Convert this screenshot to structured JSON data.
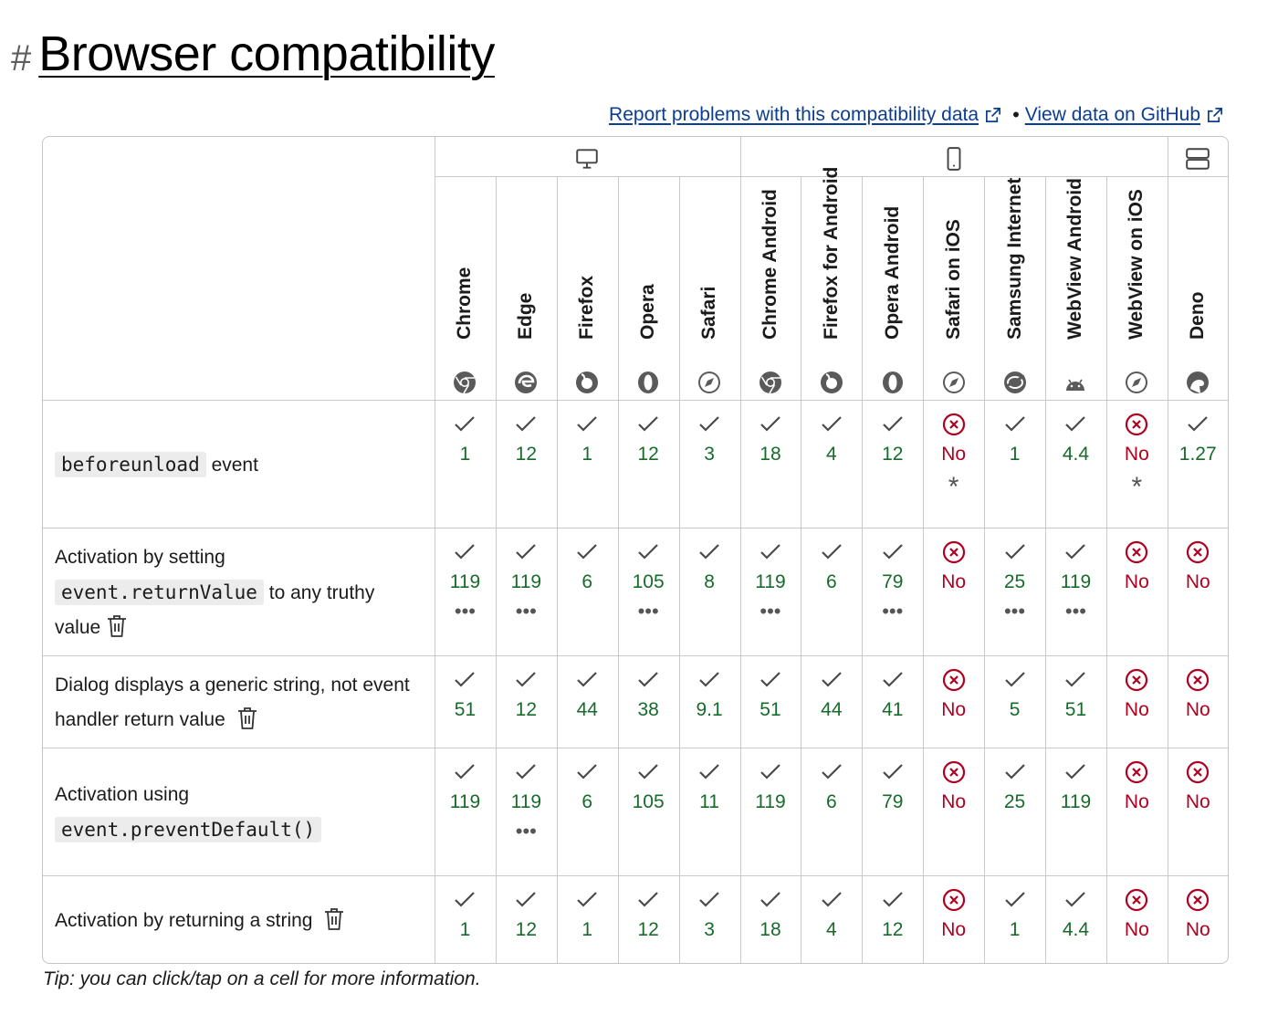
{
  "page": {
    "hash": "#",
    "title": "Browser compatibility",
    "report_link": "Report problems with this compatibility data",
    "separator": "•",
    "github_link": "View data on GitHub",
    "tip": "Tip: you can click/tap on a cell for more information."
  },
  "groups": [
    {
      "name": "desktop",
      "icon": "monitor-icon"
    },
    {
      "name": "mobile",
      "icon": "smartphone-icon"
    },
    {
      "name": "server",
      "icon": "server-icon"
    }
  ],
  "browsers": [
    {
      "name": "Chrome",
      "icon": "chrome-icon"
    },
    {
      "name": "Edge",
      "icon": "edge-icon"
    },
    {
      "name": "Firefox",
      "icon": "firefox-icon"
    },
    {
      "name": "Opera",
      "icon": "opera-icon"
    },
    {
      "name": "Safari",
      "icon": "safari-icon"
    },
    {
      "name": "Chrome Android",
      "icon": "chrome-icon"
    },
    {
      "name": "Firefox for Android",
      "icon": "firefox-icon"
    },
    {
      "name": "Opera Android",
      "icon": "opera-icon"
    },
    {
      "name": "Safari on iOS",
      "icon": "safari-icon"
    },
    {
      "name": "Samsung Internet",
      "icon": "samsung-internet-icon"
    },
    {
      "name": "WebView Android",
      "icon": "android-icon"
    },
    {
      "name": "WebView on iOS",
      "icon": "safari-icon"
    },
    {
      "name": "Deno",
      "icon": "deno-icon"
    }
  ],
  "features": [
    {
      "code": "beforeunload",
      "text": " event",
      "deprecated": false,
      "support": [
        {
          "v": "1",
          "yes": true
        },
        {
          "v": "12",
          "yes": true
        },
        {
          "v": "1",
          "yes": true
        },
        {
          "v": "12",
          "yes": true
        },
        {
          "v": "3",
          "yes": true
        },
        {
          "v": "18",
          "yes": true
        },
        {
          "v": "4",
          "yes": true
        },
        {
          "v": "12",
          "yes": true
        },
        {
          "v": "No",
          "yes": false,
          "extra": "*"
        },
        {
          "v": "1",
          "yes": true
        },
        {
          "v": "4.4",
          "yes": true
        },
        {
          "v": "No",
          "yes": false,
          "extra": "*"
        },
        {
          "v": "1.27",
          "yes": true
        }
      ]
    },
    {
      "pre": "Activation by setting",
      "code": "event.returnValue",
      "text": "to any truthy value",
      "deprecated": true,
      "support": [
        {
          "v": "119",
          "yes": true,
          "extra": "•••"
        },
        {
          "v": "119",
          "yes": true,
          "extra": "•••"
        },
        {
          "v": "6",
          "yes": true
        },
        {
          "v": "105",
          "yes": true,
          "extra": "•••"
        },
        {
          "v": "8",
          "yes": true
        },
        {
          "v": "119",
          "yes": true,
          "extra": "•••"
        },
        {
          "v": "6",
          "yes": true
        },
        {
          "v": "79",
          "yes": true,
          "extra": "•••"
        },
        {
          "v": "No",
          "yes": false
        },
        {
          "v": "25",
          "yes": true,
          "extra": "•••"
        },
        {
          "v": "119",
          "yes": true,
          "extra": "•••"
        },
        {
          "v": "No",
          "yes": false
        },
        {
          "v": "No",
          "yes": false
        }
      ]
    },
    {
      "pre": "Dialog displays a generic string, not event handler return value",
      "deprecated": true,
      "support": [
        {
          "v": "51",
          "yes": true
        },
        {
          "v": "12",
          "yes": true
        },
        {
          "v": "44",
          "yes": true
        },
        {
          "v": "38",
          "yes": true
        },
        {
          "v": "9.1",
          "yes": true
        },
        {
          "v": "51",
          "yes": true
        },
        {
          "v": "44",
          "yes": true
        },
        {
          "v": "41",
          "yes": true
        },
        {
          "v": "No",
          "yes": false
        },
        {
          "v": "5",
          "yes": true
        },
        {
          "v": "51",
          "yes": true
        },
        {
          "v": "No",
          "yes": false
        },
        {
          "v": "No",
          "yes": false
        }
      ]
    },
    {
      "pre": "Activation using",
      "code": "event.preventDefault()",
      "deprecated": false,
      "support": [
        {
          "v": "119",
          "yes": true
        },
        {
          "v": "119",
          "yes": true,
          "extra": "•••"
        },
        {
          "v": "6",
          "yes": true
        },
        {
          "v": "105",
          "yes": true
        },
        {
          "v": "11",
          "yes": true
        },
        {
          "v": "119",
          "yes": true
        },
        {
          "v": "6",
          "yes": true
        },
        {
          "v": "79",
          "yes": true
        },
        {
          "v": "No",
          "yes": false
        },
        {
          "v": "25",
          "yes": true
        },
        {
          "v": "119",
          "yes": true
        },
        {
          "v": "No",
          "yes": false
        },
        {
          "v": "No",
          "yes": false
        }
      ]
    },
    {
      "pre": "Activation by returning a string",
      "deprecated": true,
      "support": [
        {
          "v": "1",
          "yes": true
        },
        {
          "v": "12",
          "yes": true
        },
        {
          "v": "1",
          "yes": true
        },
        {
          "v": "12",
          "yes": true
        },
        {
          "v": "3",
          "yes": true
        },
        {
          "v": "18",
          "yes": true
        },
        {
          "v": "4",
          "yes": true
        },
        {
          "v": "12",
          "yes": true
        },
        {
          "v": "No",
          "yes": false
        },
        {
          "v": "1",
          "yes": true
        },
        {
          "v": "4.4",
          "yes": true
        },
        {
          "v": "No",
          "yes": false
        },
        {
          "v": "No",
          "yes": false
        }
      ]
    }
  ],
  "colors": {
    "yes": "#176b2b",
    "no": "#b00020",
    "border": "#c9c9c9"
  }
}
